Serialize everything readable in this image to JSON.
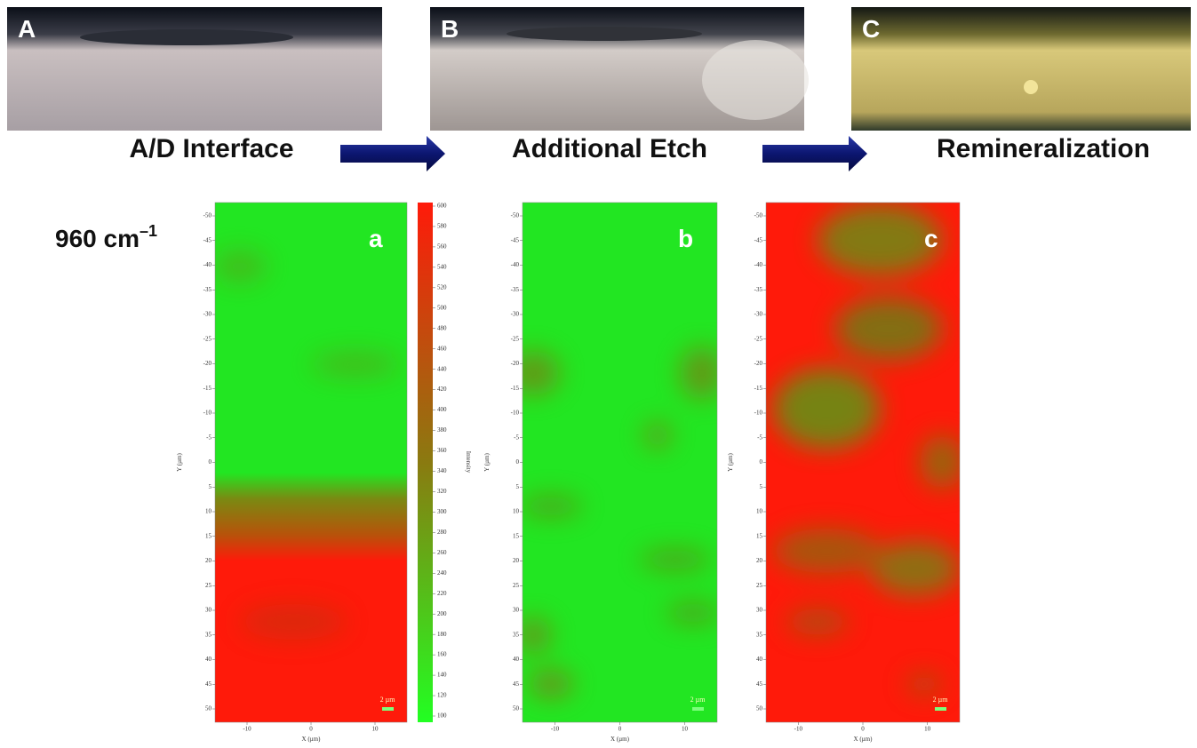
{
  "photos": [
    {
      "letter": "A"
    },
    {
      "letter": "B"
    },
    {
      "letter": "C"
    }
  ],
  "captions": [
    "A/D Interface",
    "Additional Etch",
    "Remineralization"
  ],
  "band_label": {
    "text": "960 cm",
    "superscript": "–1"
  },
  "maps": [
    {
      "label": "a",
      "y_axis_label": "Y (µm)",
      "x_axis_label": "X (µm)",
      "scale_bar": "2 µm"
    },
    {
      "label": "b",
      "y_axis_label": "Y (µm)",
      "x_axis_label": "X (µm)",
      "scale_bar": "2 µm"
    },
    {
      "label": "c",
      "y_axis_label": "Y (µm)",
      "x_axis_label": "X (µm)",
      "scale_bar": "2 µm"
    }
  ],
  "y_ticks": [
    -50,
    -45,
    -40,
    -35,
    -30,
    -25,
    -20,
    -15,
    -10,
    -5,
    0,
    5,
    10,
    15,
    20,
    25,
    30,
    35,
    40,
    45,
    50
  ],
  "x_ticks": [
    -10,
    0,
    10
  ],
  "colorbar": {
    "title": "Intensity",
    "ticks": [
      100,
      120,
      140,
      160,
      180,
      200,
      220,
      240,
      260,
      280,
      300,
      320,
      340,
      360,
      380,
      400,
      420,
      440,
      460,
      480,
      500,
      520,
      540,
      560,
      580,
      600
    ]
  }
}
